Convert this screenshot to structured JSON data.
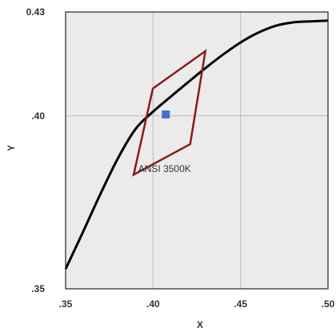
{
  "chart_data": {
    "type": "line",
    "xlabel": "X",
    "ylabel": "Y",
    "xlim": [
      0.35,
      0.5
    ],
    "ylim": [
      0.35,
      0.43
    ],
    "x_ticks": [
      0.35,
      0.4,
      0.45,
      0.5
    ],
    "x_tick_labels": [
      ".35",
      ".40",
      ".45",
      ".50"
    ],
    "y_ticks": [
      0.35,
      0.4,
      0.43
    ],
    "y_tick_labels": [
      ".35",
      ".40",
      "0.43"
    ],
    "grid": true,
    "series": [
      {
        "role": "planckian-locus",
        "color": "#000000",
        "points": [
          [
            0.35,
            0.3557
          ],
          [
            0.36,
            0.3665
          ],
          [
            0.37,
            0.3775
          ],
          [
            0.38,
            0.3878
          ],
          [
            0.39,
            0.3962
          ],
          [
            0.4,
            0.4012
          ],
          [
            0.41,
            0.4055
          ],
          [
            0.42,
            0.4097
          ],
          [
            0.43,
            0.4138
          ],
          [
            0.44,
            0.4177
          ],
          [
            0.45,
            0.4212
          ],
          [
            0.46,
            0.424
          ],
          [
            0.47,
            0.426
          ],
          [
            0.48,
            0.427
          ],
          [
            0.49,
            0.4273
          ],
          [
            0.5,
            0.4275
          ]
        ]
      }
    ],
    "quadrangle": {
      "label": "ANSI 3500K",
      "color": "#8b1a1a",
      "points": [
        [
          0.3889,
          0.383
        ],
        [
          0.3999,
          0.4079
        ],
        [
          0.4299,
          0.4187
        ],
        [
          0.4212,
          0.3918
        ]
      ]
    },
    "center_point": {
      "x": 0.4073,
      "y": 0.4004,
      "color": "#4472c4"
    }
  }
}
